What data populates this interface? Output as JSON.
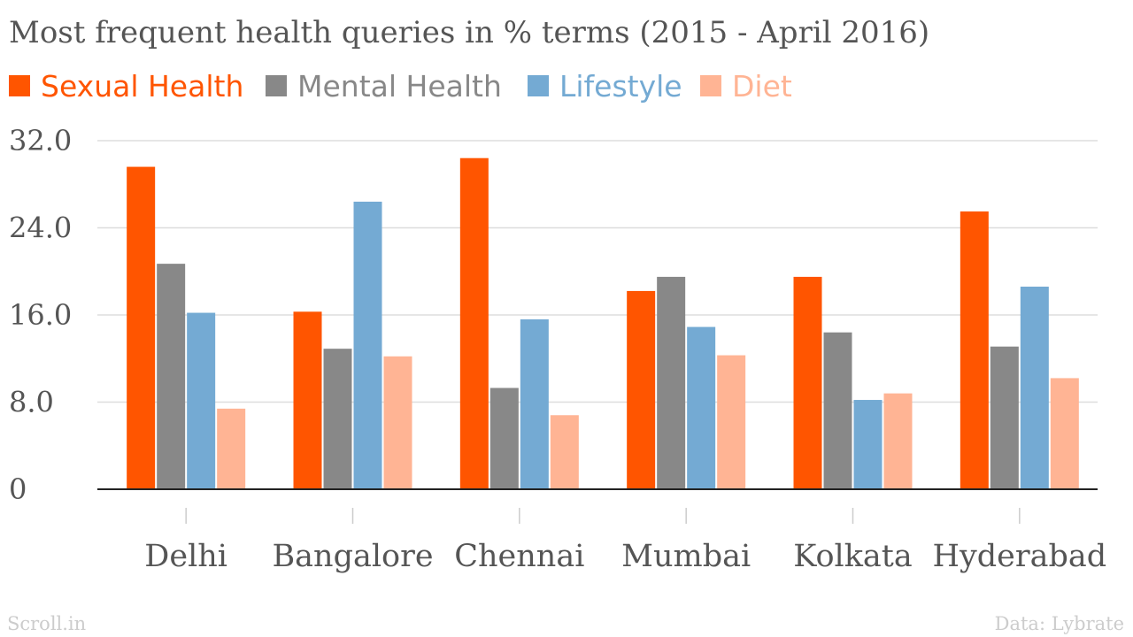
{
  "chart_data": {
    "type": "bar",
    "title": "Most frequent health queries in % terms (2015 - April 2016)",
    "categories": [
      "Delhi",
      "Bangalore",
      "Chennai",
      "Mumbai",
      "Kolkata",
      "Hyderabad"
    ],
    "series": [
      {
        "name": "Sexual Health",
        "color": "#ff5500",
        "values": [
          29.6,
          16.3,
          30.4,
          18.2,
          19.5,
          25.5
        ]
      },
      {
        "name": "Mental Health",
        "color": "#888888",
        "values": [
          20.7,
          12.9,
          9.3,
          19.5,
          14.4,
          13.1
        ]
      },
      {
        "name": "Lifestyle",
        "color": "#74aad3",
        "values": [
          16.2,
          26.4,
          15.6,
          14.9,
          8.2,
          18.6
        ]
      },
      {
        "name": "Diet",
        "color": "#ffb494",
        "values": [
          7.4,
          12.2,
          6.8,
          12.3,
          8.8,
          10.2
        ]
      }
    ],
    "ylim": [
      0,
      32
    ],
    "yticks": [
      0,
      8,
      16,
      24,
      32
    ],
    "ytick_labels": [
      "0",
      "8.0",
      "16.0",
      "24.0",
      "32.0"
    ],
    "xlabel": "",
    "ylabel": "",
    "grid": true,
    "legend_position": "top-left"
  },
  "footer": {
    "source_left": "Scroll.in",
    "source_right": "Data: Lybrate"
  }
}
